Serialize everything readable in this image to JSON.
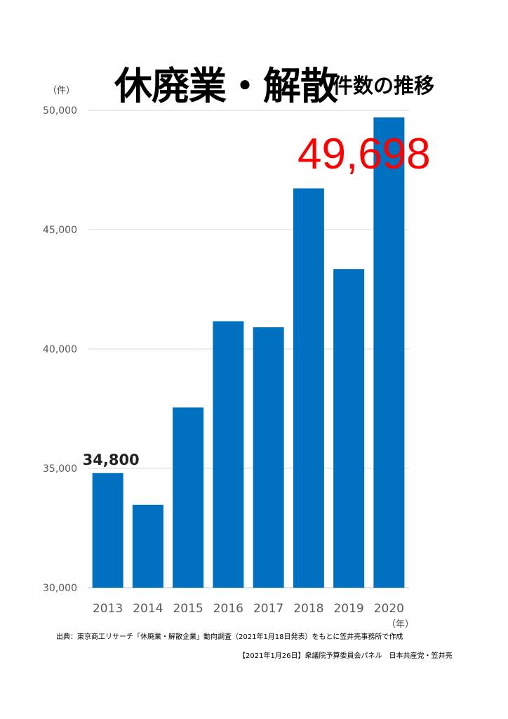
{
  "title": "休廃業・解散",
  "subtitle": "件数の推移",
  "y_unit": "（件）",
  "x_unit": "（年）",
  "source_note": "出典：東京商工リサーチ「休廃業・解散企業」動向調査（2021年1月18日発表）をもとに笠井亮事務所で作成",
  "credit": "【2021年1月26日】衆議院予算委員会パネル　日本共産党・笠井亮",
  "bar_color": "#0070c0",
  "highlight_color": "#ff0000",
  "chart_data": {
    "type": "bar",
    "categories": [
      "2013",
      "2014",
      "2015",
      "2016",
      "2017",
      "2018",
      "2019",
      "2020"
    ],
    "values": [
      34800,
      33475,
      37548,
      41162,
      40909,
      46724,
      43348,
      49698
    ],
    "ylim": [
      30000,
      50000
    ],
    "yticks": [
      30000,
      35000,
      40000,
      45000,
      50000
    ],
    "ytick_labels": [
      "30,000",
      "35,000",
      "40,000",
      "45,000",
      "50,000"
    ],
    "grid": true,
    "annotations": [
      {
        "index": 0,
        "text": "34,800"
      },
      {
        "index": 7,
        "text": "49,698"
      }
    ]
  }
}
